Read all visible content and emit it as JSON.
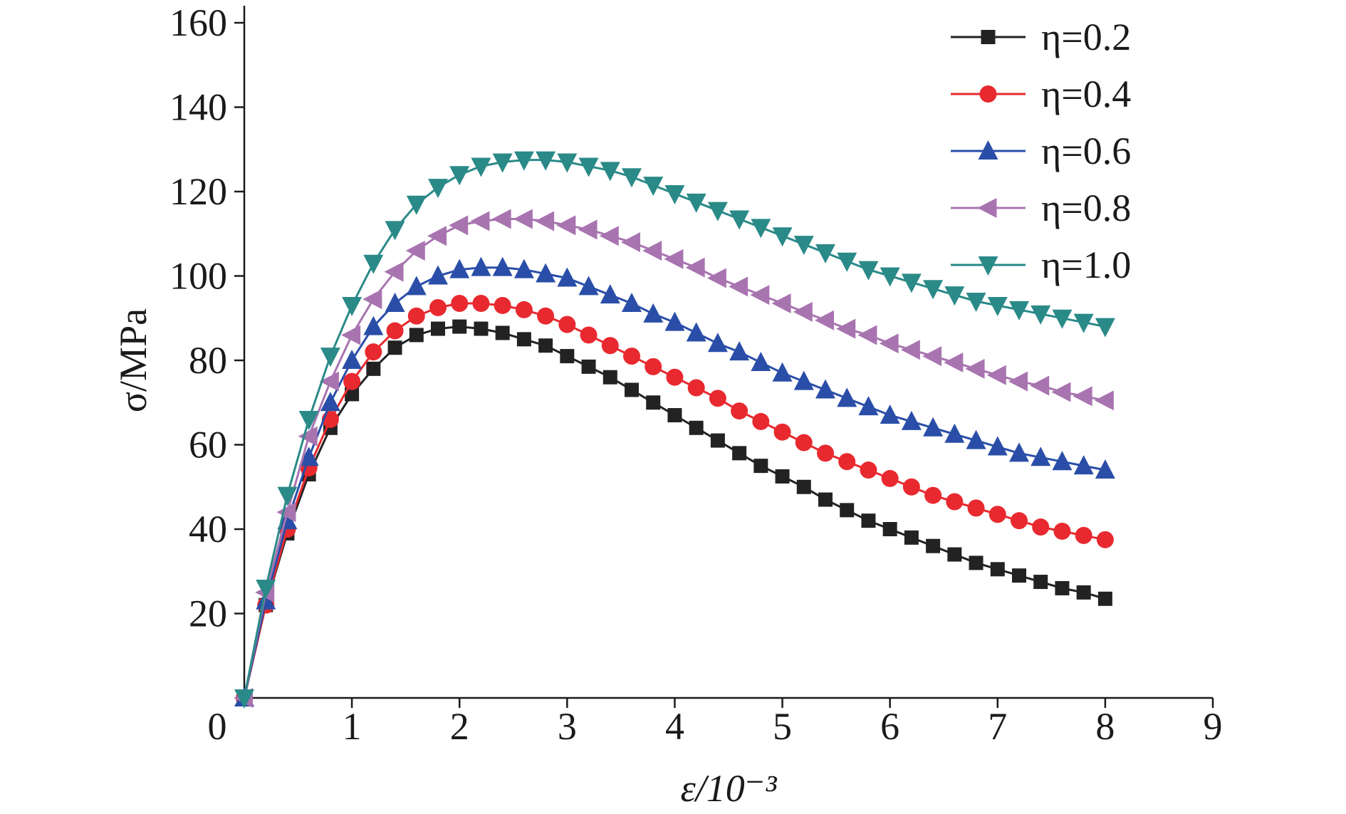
{
  "chart_data": {
    "type": "line",
    "xlabel": "ε/10⁻³",
    "ylabel": "σ/MPa",
    "xlim": [
      0,
      9
    ],
    "ylim": [
      0,
      160
    ],
    "x_ticks": [
      "0",
      "1",
      "2",
      "3",
      "4",
      "5",
      "6",
      "7",
      "8",
      "9"
    ],
    "y_ticks": [
      "20",
      "40",
      "60",
      "80",
      "100",
      "120",
      "140",
      "160"
    ],
    "grid": false,
    "legend_position": "top-right",
    "x": [
      0.0,
      0.2,
      0.4,
      0.6,
      0.8,
      1.0,
      1.2,
      1.4,
      1.6,
      1.8,
      2.0,
      2.2,
      2.4,
      2.6,
      2.8,
      3.0,
      3.2,
      3.4,
      3.6,
      3.8,
      4.0,
      4.2,
      4.4,
      4.6,
      4.8,
      5.0,
      5.2,
      5.4,
      5.6,
      5.8,
      6.0,
      6.2,
      6.4,
      6.6,
      6.8,
      7.0,
      7.2,
      7.4,
      7.6,
      7.8,
      8.0
    ],
    "series": [
      {
        "name": "η=0.2",
        "color": "#222222",
        "marker": "square",
        "values": [
          0,
          22,
          39,
          53,
          64,
          72,
          78,
          83,
          86,
          87.5,
          88,
          87.5,
          86.5,
          85,
          83.5,
          81,
          78.5,
          76,
          73,
          70,
          67,
          64,
          61,
          58,
          55,
          52.5,
          50,
          47,
          44.5,
          42,
          40,
          38,
          36,
          34,
          32,
          30.5,
          29,
          27.5,
          26,
          25,
          23.5
        ]
      },
      {
        "name": "η=0.4",
        "color": "#e8292f",
        "marker": "circle",
        "values": [
          0,
          22,
          40,
          54.5,
          66,
          75,
          82,
          87,
          90.5,
          92.5,
          93.5,
          93.5,
          93,
          92,
          90.5,
          88.5,
          86,
          83.5,
          81,
          78.5,
          76,
          73.5,
          71,
          68,
          65.5,
          63,
          60.5,
          58,
          56,
          54,
          52,
          50,
          48,
          46.5,
          45,
          43.5,
          42,
          40.5,
          39.5,
          38.5,
          37.5
        ]
      },
      {
        "name": "η=0.6",
        "color": "#2a4ea8",
        "marker": "triangle-up",
        "values": [
          0,
          23,
          42,
          57,
          70,
          80,
          88,
          93.5,
          97.5,
          100,
          101.5,
          102,
          102,
          101.5,
          100.5,
          99.5,
          97.5,
          95.5,
          93.5,
          91,
          89,
          86.5,
          84,
          82,
          79.5,
          77,
          75,
          73,
          71,
          69,
          67,
          65.5,
          64,
          62.5,
          61,
          59.5,
          58,
          57,
          56,
          55,
          54
        ]
      },
      {
        "name": "η=0.8",
        "color": "#a874b0",
        "marker": "triangle-left",
        "values": [
          0,
          25,
          44,
          62,
          75,
          86,
          94.5,
          101,
          106,
          109.5,
          112,
          113,
          113.5,
          113.5,
          113,
          112,
          111,
          109.5,
          108,
          106,
          104,
          102,
          99.5,
          97.5,
          95.5,
          93.5,
          91.5,
          89.5,
          87.5,
          86,
          84,
          82.5,
          81,
          79.5,
          78,
          76.5,
          75,
          74,
          72.5,
          71.5,
          70.5
        ]
      },
      {
        "name": "η=1.0",
        "color": "#2a8a88",
        "marker": "triangle-down",
        "values": [
          0,
          26,
          48,
          66,
          81,
          93,
          103,
          111,
          117,
          121,
          124,
          126,
          127,
          127.5,
          127.5,
          127,
          126,
          125,
          123.5,
          121.5,
          119.5,
          117.5,
          115.5,
          113.5,
          111.5,
          109.5,
          107.5,
          105.5,
          103.5,
          101.5,
          100,
          98.5,
          97,
          95.5,
          94,
          93,
          92,
          91,
          90,
          89,
          88
        ]
      }
    ]
  }
}
